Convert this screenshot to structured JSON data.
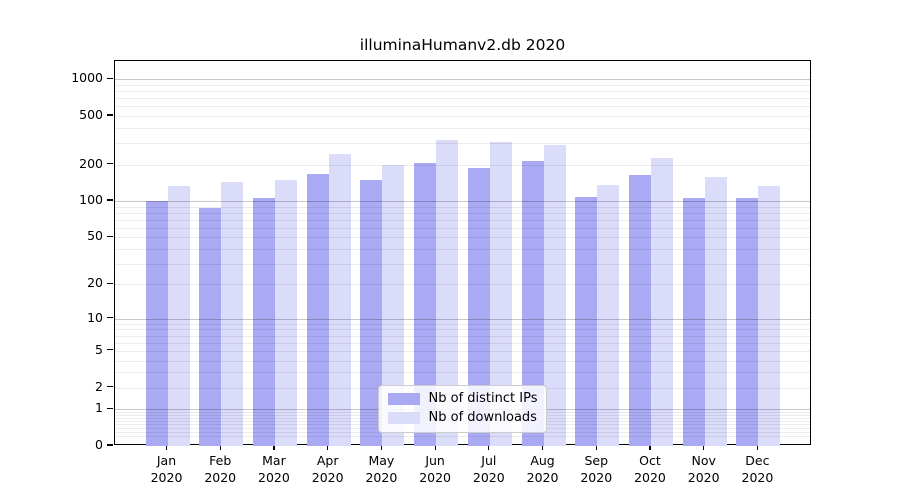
{
  "title": "illuminaHumanv2.db 2020",
  "colors": {
    "ips_bar": "#a9a9f4",
    "downloads_bar": "#dbdbfa",
    "spine": "#000000",
    "grid_major": "rgba(0,0,0,0.22)",
    "grid_minor": "rgba(0,0,0,0.075)",
    "legend_border": "#cccccc",
    "legend_bg": "#ffffff"
  },
  "chart_data": {
    "type": "bar",
    "title": "illuminaHumanv2.db 2020",
    "categories": [
      "Jan",
      "Feb",
      "Mar",
      "Apr",
      "May",
      "Jun",
      "Jul",
      "Aug",
      "Sep",
      "Oct",
      "Nov",
      "Dec"
    ],
    "year_label": "2020",
    "series": [
      {
        "name": "Nb of distinct IPs",
        "color": "#a9a9f4",
        "values": [
          100,
          87,
          106,
          166,
          150,
          207,
          187,
          213,
          109,
          164,
          107,
          106
        ]
      },
      {
        "name": "Nb of downloads",
        "color": "#dbdbfa",
        "values": [
          134,
          143,
          148,
          243,
          200,
          318,
          307,
          288,
          136,
          228,
          158,
          134
        ]
      }
    ],
    "xlabel": "",
    "ylabel": "",
    "yscale": "log1p",
    "y_tick_values": [
      0,
      1,
      2,
      5,
      10,
      20,
      50,
      100,
      200,
      500,
      1000
    ],
    "ylim": [
      0,
      1414
    ],
    "grid": true,
    "grid_above_bars": true,
    "legend_position": "lower center"
  }
}
